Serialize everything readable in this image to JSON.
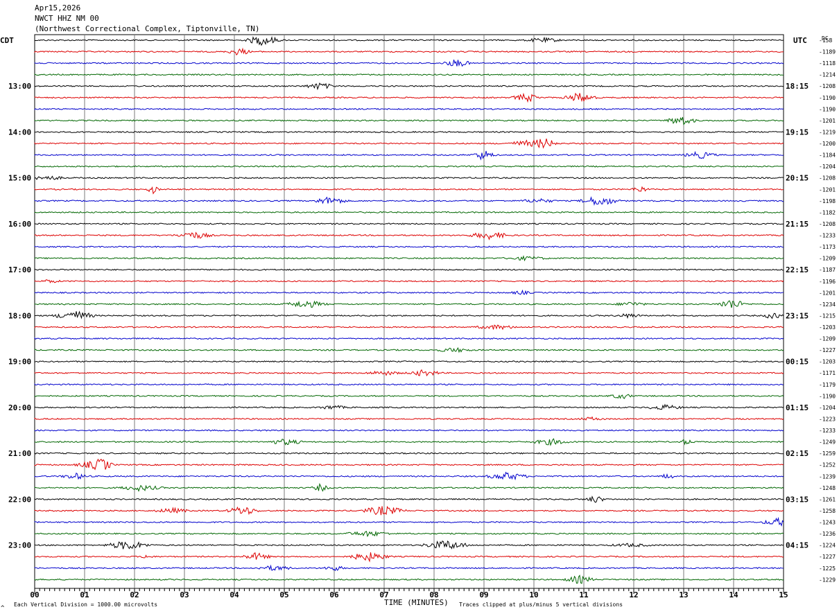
{
  "header": {
    "date": "Apr15,2026",
    "station": "NWCT HHZ NM 00",
    "location": "(Northwest Correctional Complex, Tiptonville, TN)"
  },
  "left_axis_label": "CDT",
  "right_axis_label": "UTC",
  "dc_label": "DC",
  "footer": {
    "scale_note": "Each Vertical Division = 1000.00 microvolts",
    "xaxis_title": "TIME (MINUTES)",
    "clip_note": "Traces clipped at plus/minus 5 vertical divisions",
    "corner_mark": "^"
  },
  "colors": {
    "cycle": [
      "#000000",
      "#dd0000",
      "#0000cc",
      "#006600"
    ],
    "grid": "#7a7a7a"
  },
  "chart_data": {
    "type": "helicorder",
    "x_ticks": [
      "00",
      "01",
      "02",
      "03",
      "04",
      "05",
      "06",
      "07",
      "08",
      "09",
      "10",
      "11",
      "12",
      "13",
      "14",
      "15"
    ],
    "xlim": [
      0,
      15
    ],
    "row_minutes": 15,
    "traces_per_hour": 4,
    "left_hour_labels": [
      "13:00",
      "14:00",
      "15:00",
      "16:00",
      "17:00",
      "18:00",
      "19:00",
      "20:00",
      "21:00",
      "22:00",
      "23:00"
    ],
    "right_hour_labels": [
      "18:15",
      "19:15",
      "20:15",
      "21:15",
      "22:15",
      "23:15",
      "00:15",
      "01:15",
      "02:15",
      "03:15",
      "04:15"
    ],
    "dc_offsets": [
      "-158",
      "-1189",
      "-1118",
      "-1214",
      "-1208",
      "-1190",
      "-1190",
      "-1201",
      "-1219",
      "-1200",
      "-1184",
      "-1204",
      "-1208",
      "-1201",
      "-1198",
      "-1182",
      "-1208",
      "-1233",
      "-1173",
      "-1209",
      "-1187",
      "-1196",
      "-1201",
      "-1234",
      "-1215",
      "-1203",
      "-1209",
      "-1227",
      "-1203",
      "-1171",
      "-1179",
      "-1190",
      "-1204",
      "-1223",
      "-1233",
      "-1249",
      "-1259",
      "-1252",
      "-1239",
      "-1248",
      "-1261",
      "-1258",
      "-1243",
      "-1236",
      "-1224",
      "-1227",
      "-1225",
      "-1229"
    ]
  }
}
